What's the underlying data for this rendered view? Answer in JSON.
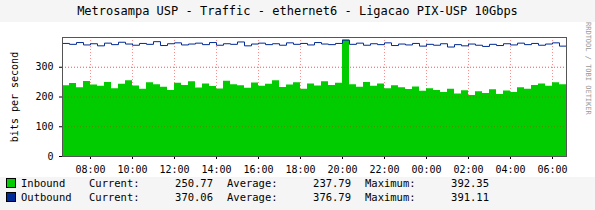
{
  "chart_data": {
    "type": "area",
    "title": "Metrosampa USP - Traffic - ethernet6 - Ligacao PIX-USP 10Gbps",
    "y_label": "bits per second",
    "watermark": "RRDTOOL / TOBI OETIKER",
    "stat_labels": [
      "Current:",
      "Average:",
      "Maximum:"
    ],
    "x": [
      6.6667,
      7.0,
      7.3333,
      7.6667,
      8.0,
      8.3333,
      8.6667,
      9.0,
      9.3333,
      9.6667,
      10.0,
      10.3333,
      10.6667,
      11.0,
      11.3333,
      11.6667,
      12.0,
      12.3333,
      12.6667,
      13.0,
      13.3333,
      13.6667,
      14.0,
      14.3333,
      14.6667,
      15.0,
      15.3333,
      15.6667,
      16.0,
      16.3333,
      16.6667,
      17.0,
      17.3333,
      17.6667,
      18.0,
      18.3333,
      18.6667,
      19.0,
      19.3333,
      19.6667,
      20.0,
      20.3333,
      20.6667,
      21.0,
      21.3333,
      21.6667,
      22.0,
      22.3333,
      22.6667,
      23.0,
      23.3333,
      23.6667,
      24.0,
      24.3333,
      24.6667,
      25.0,
      25.3333,
      25.6667,
      26.0,
      26.3333,
      26.6667,
      27.0,
      27.3333,
      27.6667,
      28.0,
      28.3333,
      28.6667,
      29.0,
      29.3333,
      29.6667,
      30.0,
      30.3333,
      30.6667
    ],
    "series": [
      {
        "name": "Inbound",
        "type": "area",
        "color": "#00cc00",
        "current": 250.77,
        "average": 237.79,
        "maximum": 392.35,
        "values": [
          238,
          245,
          231,
          252,
          240,
          236,
          249,
          228,
          243,
          255,
          237,
          226,
          248,
          241,
          233,
          222,
          246,
          239,
          251,
          230,
          244,
          235,
          227,
          253,
          241,
          238,
          229,
          247,
          236,
          243,
          255,
          232,
          240,
          248,
          226,
          244,
          237,
          251,
          239,
          246,
          392,
          241,
          233,
          249,
          236,
          244,
          228,
          238,
          231,
          225,
          234,
          219,
          228,
          222,
          215,
          226,
          210,
          221,
          205,
          218,
          212,
          224,
          208,
          220,
          215,
          231,
          226,
          239,
          244,
          236,
          248,
          241,
          251
        ]
      },
      {
        "name": "Outbound",
        "type": "line",
        "color": "#002a97",
        "current": 370.06,
        "average": 376.79,
        "maximum": 391.11,
        "values": [
          380,
          377,
          383,
          375,
          379,
          372,
          381,
          376,
          384,
          378,
          374,
          380,
          377,
          386,
          373,
          379,
          382,
          375,
          378,
          381,
          376,
          383,
          374,
          379,
          377,
          385,
          372,
          378,
          381,
          376,
          379,
          374,
          382,
          377,
          380,
          375,
          383,
          378,
          376,
          380,
          391,
          377,
          381,
          374,
          379,
          376,
          382,
          373,
          378,
          375,
          380,
          371,
          377,
          374,
          379,
          368,
          376,
          372,
          378,
          374,
          370,
          377,
          373,
          379,
          375,
          381,
          376,
          380,
          374,
          378,
          382,
          371,
          370
        ]
      }
    ],
    "xlim": [
      6.6667,
      30.6667
    ],
    "xticks": [
      {
        "value": 8,
        "label": "08:00"
      },
      {
        "value": 10,
        "label": "10:00"
      },
      {
        "value": 12,
        "label": "12:00"
      },
      {
        "value": 14,
        "label": "14:00"
      },
      {
        "value": 16,
        "label": "16:00"
      },
      {
        "value": 18,
        "label": "18:00"
      },
      {
        "value": 20,
        "label": "20:00"
      },
      {
        "value": 22,
        "label": "22:00"
      },
      {
        "value": 24,
        "label": "00:00"
      },
      {
        "value": 26,
        "label": "02:00"
      },
      {
        "value": 28,
        "label": "04:00"
      },
      {
        "value": 30,
        "label": "06:00"
      }
    ],
    "ylim": [
      0,
      400
    ],
    "yticks": [
      0,
      100,
      200,
      300
    ],
    "grid": true,
    "legend": "bottom"
  }
}
